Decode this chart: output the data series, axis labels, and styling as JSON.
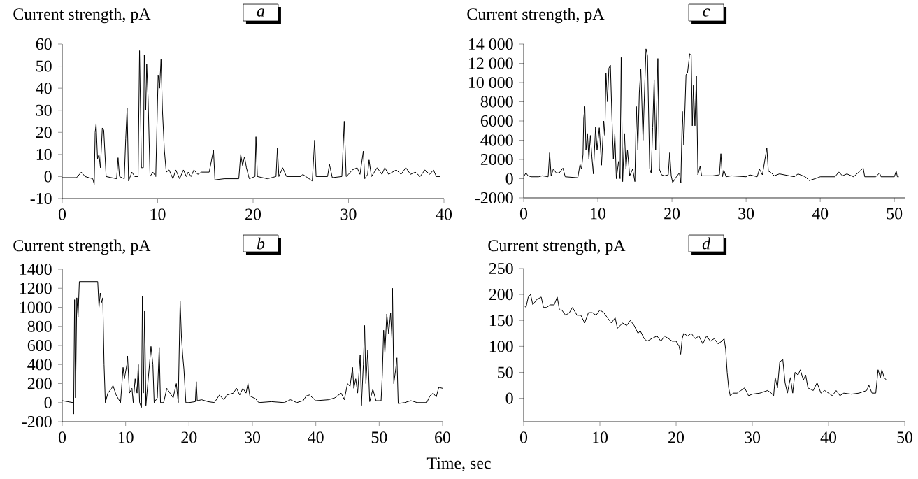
{
  "chart_data": [
    {
      "type": "line",
      "title": "a",
      "ylabel": "Current strength, pA",
      "xlim": [
        0,
        40
      ],
      "ylim": [
        -10,
        60
      ],
      "xticks": [
        0,
        10,
        20,
        30,
        40
      ],
      "yticks": [
        -10,
        0,
        10,
        20,
        30,
        40,
        50,
        60
      ],
      "series": [
        {
          "color": "#000000",
          "x": [
            0,
            1.5,
            2,
            2.4,
            3.2,
            3.35,
            3.45,
            3.55,
            3.7,
            3.85,
            4.0,
            4.2,
            4.35,
            4.6,
            5.7,
            5.85,
            6.0,
            6.5,
            6.65,
            6.8,
            6.95,
            7.3,
            7.6,
            7.95,
            8.1,
            8.3,
            8.5,
            8.6,
            8.75,
            8.85,
            9.0,
            9.2,
            9.5,
            9.8,
            10.05,
            10.2,
            10.35,
            10.5,
            10.7,
            10.9,
            11.2,
            11.6,
            11.9,
            12.3,
            12.7,
            13.0,
            13.2,
            13.5,
            13.8,
            14.2,
            14.6,
            15.4,
            15.85,
            16.0,
            17,
            18.5,
            18.7,
            18.9,
            19.1,
            19.3,
            19.6,
            20.2,
            20.3,
            20.45,
            21.5,
            22.4,
            22.55,
            22.7,
            23.1,
            23.5,
            25,
            25.2,
            26.2,
            26.45,
            26.6,
            27.8,
            28.0,
            28.3,
            29.3,
            29.55,
            29.75,
            30,
            30.4,
            30.9,
            31.2,
            31.55,
            31.7,
            32.0,
            32.15,
            32.4,
            33.0,
            33.5,
            33.8,
            34.2,
            35,
            35.5,
            36.0,
            36.5,
            37.0,
            37.5,
            38.0,
            38.5,
            38.9,
            39.2,
            39.6
          ],
          "values": [
            -0.5,
            -0.5,
            2,
            0,
            -1,
            -3.5,
            20,
            24,
            8,
            10,
            4,
            22,
            21,
            0,
            -1,
            8.5,
            0,
            -1,
            17,
            31,
            -2,
            2,
            0,
            0,
            57,
            4,
            4,
            55,
            30,
            51,
            35,
            0,
            2,
            0,
            46,
            40,
            53,
            30,
            12,
            2,
            3,
            -1,
            3,
            -1,
            3,
            0,
            2,
            0,
            3,
            1,
            2,
            2,
            12,
            -1.5,
            -1,
            -1,
            10,
            5,
            9,
            4,
            -1,
            0,
            18,
            0,
            -1,
            0,
            13,
            0,
            4,
            0,
            0,
            1,
            -2,
            16.5,
            0,
            0,
            5.5,
            -0.5,
            0,
            25,
            0,
            1,
            3,
            4,
            1,
            11.5,
            -1,
            1,
            7.5,
            0,
            4,
            1,
            4,
            1,
            3,
            1,
            4,
            1,
            2,
            0,
            3,
            1,
            3,
            0,
            0
          ]
        }
      ]
    },
    {
      "type": "line",
      "title": "c",
      "ylabel": "Current strength, pA",
      "xlim": [
        0,
        51.4
      ],
      "ylim": [
        -2000,
        14000
      ],
      "xticks": [
        0,
        10,
        20,
        30,
        40,
        50
      ],
      "yticks": [
        -2000,
        0,
        2000,
        4000,
        6000,
        8000,
        {
          "value": 10000,
          "label": "10 000"
        },
        {
          "value": 12000,
          "label": "12 000"
        },
        {
          "value": 14000,
          "label": "14 000"
        }
      ],
      "series": [
        {
          "color": "#000000",
          "x": [
            0,
            0.3,
            0.6,
            1,
            2,
            2.5,
            3.3,
            3.5,
            3.7,
            4.0,
            4.4,
            4.8,
            5.3,
            5.6,
            7.3,
            7.6,
            7.8,
            8.0,
            8.1,
            8.25,
            8.4,
            8.6,
            8.8,
            9.0,
            9.2,
            9.4,
            9.7,
            9.9,
            10.2,
            10.5,
            10.8,
            10.95,
            11.1,
            11.3,
            11.5,
            11.7,
            11.9,
            12.1,
            12.3,
            12.5,
            12.8,
            13.0,
            13.15,
            13.35,
            13.6,
            13.8,
            14.0,
            14.3,
            14.7,
            15.0,
            15.2,
            15.4,
            15.6,
            15.8,
            16.1,
            16.3,
            16.5,
            16.7,
            17.0,
            17.2,
            17.4,
            17.6,
            17.8,
            18.1,
            18.3,
            18.6,
            19.0,
            19.5,
            19.7,
            19.9,
            20.1,
            20.6,
            21.0,
            21.2,
            21.4,
            21.6,
            21.9,
            22.1,
            22.4,
            22.6,
            22.75,
            22.9,
            23.1,
            23.3,
            23.5,
            23.8,
            24.0,
            25.5,
            26.4,
            26.6,
            26.8,
            27.0,
            27.3,
            28.0,
            30,
            30.5,
            31.5,
            31.8,
            32.2,
            32.8,
            33.0,
            33.4,
            33.8,
            34.5,
            36.5,
            37.0,
            38.0,
            38.5,
            39.3,
            40,
            42,
            42.5,
            43.0,
            43.6,
            44.5,
            45.8,
            46.0,
            47.5,
            48.0,
            48.2,
            50,
            50.25,
            50.4,
            50.6
          ],
          "values": [
            200,
            600,
            300,
            200,
            200,
            300,
            200,
            2700,
            300,
            1000,
            600,
            600,
            1100,
            200,
            100,
            1500,
            1000,
            2500,
            6300,
            7500,
            3000,
            4700,
            2000,
            4500,
            2300,
            500,
            5400,
            3000,
            5300,
            1400,
            6000,
            4500,
            11000,
            8000,
            11500,
            11800,
            6500,
            2000,
            4700,
            0,
            1800,
            0,
            12600,
            -300,
            4700,
            1000,
            3000,
            300,
            1000,
            -300,
            7500,
            3000,
            9000,
            11400,
            4000,
            9000,
            13500,
            12800,
            1000,
            600,
            5300,
            10300,
            3000,
            12500,
            1000,
            400,
            300,
            400,
            2700,
            300,
            -400,
            200,
            600,
            -400,
            7000,
            3500,
            10800,
            11000,
            13000,
            12800,
            5500,
            9700,
            5500,
            10700,
            400,
            1300,
            300,
            300,
            400,
            2600,
            200,
            900,
            200,
            300,
            200,
            400,
            200,
            1000,
            400,
            3200,
            800,
            600,
            300,
            500,
            200,
            500,
            200,
            -200,
            0,
            200,
            200,
            700,
            300,
            500,
            200,
            1100,
            200,
            200,
            600,
            200,
            200,
            800,
            200,
            200
          ]
        }
      ]
    },
    {
      "type": "line",
      "title": "b",
      "ylabel": "Current strength, pA",
      "xlabel": "Time, sec",
      "xlim": [
        0,
        60
      ],
      "ylim": [
        -200,
        1400
      ],
      "xticks": [
        0,
        10,
        20,
        30,
        40,
        50,
        60
      ],
      "yticks": [
        -200,
        0,
        200,
        400,
        600,
        800,
        1000,
        1200,
        1400
      ],
      "series": [
        {
          "color": "#000000",
          "x": [
            0,
            1.7,
            1.8,
            1.95,
            2.1,
            2.3,
            2.5,
            2.7,
            5.6,
            5.8,
            6.0,
            6.2,
            6.4,
            6.6,
            6.8,
            7.2,
            7.8,
            8.0,
            8.5,
            9.2,
            9.6,
            9.8,
            10.2,
            10.3,
            10.6,
            11.0,
            11.2,
            11.5,
            11.8,
            12.0,
            12.2,
            12.5,
            12.65,
            12.8,
            13.0,
            13.2,
            13.7,
            14.0,
            14.3,
            14.5,
            15.0,
            15.3,
            15.5,
            16.0,
            16.5,
            17.0,
            17.5,
            18.0,
            18.3,
            18.6,
            18.8,
            19.0,
            19.2,
            19.5,
            20.0,
            21.0,
            21.15,
            21.3,
            22.0,
            23,
            24,
            24.8,
            25.5,
            26,
            27.0,
            27.5,
            28.0,
            28.5,
            29.0,
            29.3,
            29.6,
            30.5,
            31,
            33,
            35,
            36,
            37,
            38,
            38.5,
            39,
            40,
            42,
            43,
            44,
            44.5,
            45,
            45.4,
            45.8,
            46.0,
            46.3,
            46.6,
            47.0,
            47.2,
            47.5,
            47.7,
            47.9,
            48.2,
            48.5,
            49.0,
            49.5,
            50.3,
            50.5,
            50.7,
            50.9,
            51.2,
            51.5,
            51.8,
            52.0,
            52.1,
            52.3,
            52.6,
            52.8,
            53.0,
            54,
            55,
            56,
            57.5,
            58,
            58.5,
            59,
            59.4,
            60
          ],
          "values": [
            20,
            0,
            -120,
            1080,
            50,
            1100,
            900,
            1270,
            1270,
            1000,
            1150,
            1050,
            1100,
            400,
            0,
            100,
            150,
            180,
            80,
            0,
            370,
            250,
            400,
            490,
            100,
            150,
            0,
            250,
            100,
            400,
            0,
            -50,
            1120,
            100,
            960,
            -30,
            350,
            590,
            400,
            0,
            50,
            580,
            0,
            0,
            150,
            100,
            50,
            200,
            0,
            1070,
            700,
            500,
            350,
            0,
            0,
            10,
            220,
            20,
            30,
            10,
            0,
            80,
            30,
            80,
            100,
            150,
            80,
            150,
            100,
            200,
            70,
            40,
            0,
            10,
            0,
            30,
            0,
            20,
            70,
            80,
            20,
            30,
            50,
            100,
            30,
            200,
            170,
            370,
            150,
            250,
            100,
            500,
            -30,
            400,
            810,
            200,
            550,
            10,
            140,
            20,
            20,
            300,
            760,
            520,
            930,
            720,
            940,
            680,
            1200,
            200,
            350,
            470,
            -10,
            0,
            20,
            0,
            0,
            70,
            100,
            60,
            160,
            150
          ]
        }
      ]
    },
    {
      "type": "line",
      "title": "d",
      "ylabel": "Current strength, pA",
      "xlim": [
        0,
        50
      ],
      "ylim": [
        -45,
        250
      ],
      "xticks": [
        0,
        10,
        20,
        30,
        40,
        50
      ],
      "yticks": [
        0,
        50,
        100,
        150,
        200,
        250
      ],
      "series": [
        {
          "color": "#000000",
          "x": [
            0,
            0.3,
            0.6,
            0.9,
            1.2,
            1.7,
            2.3,
            2.6,
            3.0,
            3.5,
            4.0,
            4.4,
            4.7,
            5.0,
            5.5,
            6.0,
            6.4,
            7.0,
            7.5,
            8.0,
            8.5,
            9.0,
            9.5,
            10.0,
            10.5,
            11.0,
            11.5,
            12.0,
            12.3,
            13.0,
            13.5,
            14.0,
            14.5,
            15.0,
            15.3,
            15.8,
            16.2,
            16.8,
            17.5,
            18.0,
            18.5,
            19.0,
            19.5,
            20.0,
            20.4,
            20.6,
            20.8,
            21.0,
            21.5,
            22.0,
            22.5,
            23.0,
            23.5,
            24.0,
            24.5,
            25.0,
            25.5,
            26.0,
            26.3,
            26.5,
            26.7,
            26.9,
            27.1,
            27.5,
            28.0,
            28.5,
            29.0,
            29.5,
            30.0,
            31,
            32,
            32.5,
            32.8,
            33.0,
            33.3,
            33.6,
            34.0,
            34.3,
            34.6,
            35.0,
            35.3,
            35.6,
            36.0,
            36.3,
            36.7,
            37.0,
            37.3,
            38.0,
            38.5,
            39.0,
            39.5,
            40.0,
            40.5,
            41.0,
            41.5,
            42,
            43,
            44,
            45.0,
            45.3,
            45.7,
            46.2,
            46.5,
            46.8,
            47.0,
            47.3,
            47.6
          ],
          "values": [
            180,
            175,
            195,
            200,
            180,
            190,
            195,
            175,
            175,
            180,
            180,
            195,
            170,
            170,
            160,
            165,
            175,
            160,
            160,
            145,
            165,
            165,
            160,
            170,
            165,
            155,
            145,
            155,
            135,
            145,
            140,
            150,
            140,
            125,
            130,
            115,
            110,
            115,
            120,
            110,
            120,
            115,
            110,
            110,
            100,
            85,
            115,
            125,
            120,
            125,
            115,
            120,
            105,
            120,
            110,
            115,
            105,
            110,
            115,
            95,
            50,
            20,
            5,
            10,
            10,
            15,
            20,
            5,
            8,
            10,
            15,
            10,
            5,
            40,
            20,
            70,
            75,
            30,
            10,
            40,
            10,
            50,
            45,
            55,
            35,
            45,
            20,
            15,
            30,
            10,
            15,
            10,
            5,
            15,
            5,
            10,
            8,
            10,
            15,
            25,
            10,
            10,
            55,
            40,
            55,
            40,
            35
          ]
        }
      ]
    }
  ]
}
